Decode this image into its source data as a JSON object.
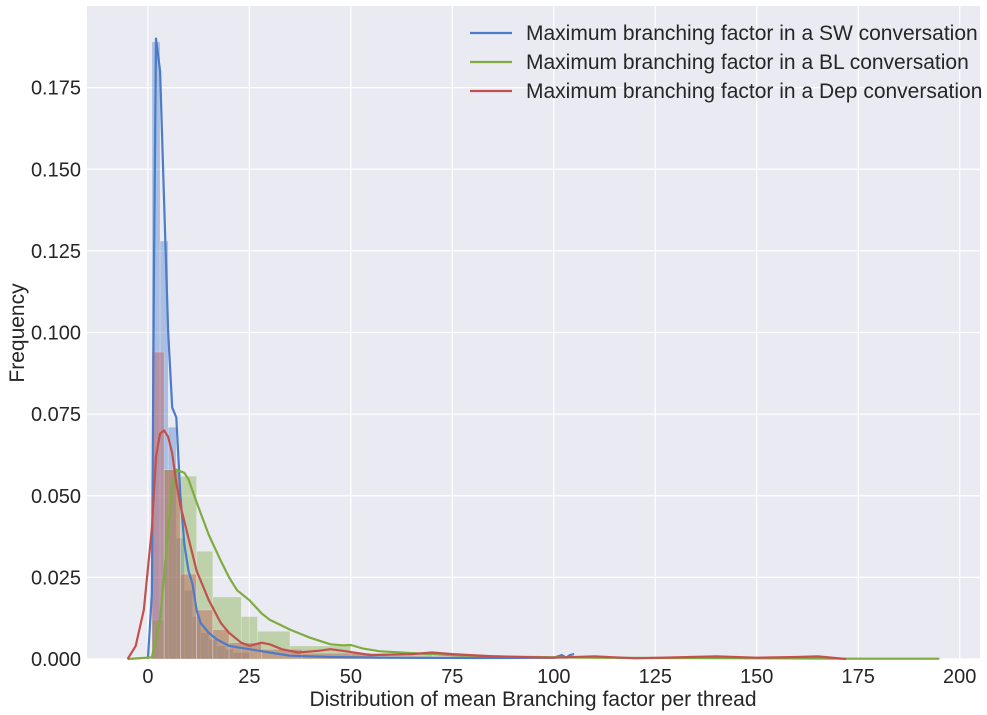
{
  "chart_data": {
    "type": "histogram",
    "title": "",
    "xlabel": "Distribution of mean Branching factor per thread",
    "ylabel": "Frequency",
    "xlim": [
      -15,
      205
    ],
    "ylim": [
      0,
      0.2
    ],
    "xticks": [
      0,
      25,
      50,
      75,
      100,
      125,
      150,
      175,
      200
    ],
    "yticks": [
      0.0,
      0.025,
      0.05,
      0.075,
      0.1,
      0.125,
      0.15,
      0.175
    ],
    "ytick_labels": [
      "0.000",
      "0.025",
      "0.050",
      "0.075",
      "0.100",
      "0.125",
      "0.150",
      "0.175"
    ],
    "grid": true,
    "legend_position": "top-right",
    "series": [
      {
        "name": "Maximum branching factor in a SW conversation",
        "color": "#4a7cc9",
        "hist": [
          {
            "x0": 1,
            "x1": 3,
            "y": 0.189
          },
          {
            "x0": 3,
            "x1": 5,
            "y": 0.128
          },
          {
            "x0": 5,
            "x1": 7,
            "y": 0.071
          },
          {
            "x0": 7,
            "x1": 9,
            "y": 0.037
          },
          {
            "x0": 9,
            "x1": 11,
            "y": 0.021
          },
          {
            "x0": 11,
            "x1": 13,
            "y": 0.013
          },
          {
            "x0": 13,
            "x1": 15,
            "y": 0.008
          },
          {
            "x0": 15,
            "x1": 17,
            "y": 0.006
          },
          {
            "x0": 17,
            "x1": 19,
            "y": 0.004
          },
          {
            "x0": 19,
            "x1": 21,
            "y": 0.003
          },
          {
            "x0": 21,
            "x1": 25,
            "y": 0.002
          }
        ],
        "kde": [
          [
            0,
            0
          ],
          [
            1,
            0.02
          ],
          [
            1.5,
            0.12
          ],
          [
            2,
            0.19
          ],
          [
            3,
            0.18
          ],
          [
            4,
            0.14
          ],
          [
            5,
            0.1
          ],
          [
            6,
            0.077
          ],
          [
            7,
            0.074
          ],
          [
            8,
            0.05
          ],
          [
            9,
            0.035
          ],
          [
            10,
            0.027
          ],
          [
            11,
            0.023
          ],
          [
            12,
            0.015
          ],
          [
            13,
            0.011
          ],
          [
            15,
            0.008
          ],
          [
            17,
            0.006
          ],
          [
            20,
            0.004
          ],
          [
            25,
            0.003
          ],
          [
            30,
            0.002
          ],
          [
            35,
            0.001
          ],
          [
            45,
            0.0006
          ],
          [
            60,
            0.0004
          ],
          [
            80,
            0.0003
          ],
          [
            100,
            0.0004
          ],
          [
            102,
            0.0012
          ],
          [
            103,
            0.0004
          ],
          [
            104,
            0.0012
          ],
          [
            105,
            0.0015
          ]
        ]
      },
      {
        "name": "Maximum branching factor in a BL conversation",
        "color": "#7fac3f",
        "hist": [
          {
            "x0": 1,
            "x1": 4,
            "y": 0.012
          },
          {
            "x0": 4,
            "x1": 8,
            "y": 0.058
          },
          {
            "x0": 8,
            "x1": 12,
            "y": 0.056
          },
          {
            "x0": 12,
            "x1": 16,
            "y": 0.033
          },
          {
            "x0": 16,
            "x1": 23,
            "y": 0.019
          },
          {
            "x0": 23,
            "x1": 27,
            "y": 0.013
          },
          {
            "x0": 27,
            "x1": 35,
            "y": 0.0085
          },
          {
            "x0": 35,
            "x1": 50,
            "y": 0.004
          },
          {
            "x0": 50,
            "x1": 70,
            "y": 0.0018
          },
          {
            "x0": 70,
            "x1": 100,
            "y": 0.0008
          },
          {
            "x0": 100,
            "x1": 195,
            "y": 0.0002
          }
        ],
        "kde": [
          [
            -5,
            0
          ],
          [
            1,
            0.0005
          ],
          [
            3,
            0.012
          ],
          [
            5,
            0.04
          ],
          [
            6,
            0.052
          ],
          [
            7,
            0.058
          ],
          [
            9,
            0.057
          ],
          [
            10,
            0.055
          ],
          [
            12,
            0.048
          ],
          [
            15,
            0.038
          ],
          [
            18,
            0.03
          ],
          [
            20,
            0.025
          ],
          [
            22,
            0.021
          ],
          [
            25,
            0.018
          ],
          [
            28,
            0.014
          ],
          [
            30,
            0.012
          ],
          [
            35,
            0.009
          ],
          [
            40,
            0.0065
          ],
          [
            45,
            0.0045
          ],
          [
            48,
            0.0042
          ],
          [
            50,
            0.0043
          ],
          [
            53,
            0.0032
          ],
          [
            57,
            0.0024
          ],
          [
            65,
            0.0018
          ],
          [
            75,
            0.0012
          ],
          [
            90,
            0.0007
          ],
          [
            110,
            0.0004
          ],
          [
            130,
            0.0003
          ],
          [
            150,
            0.0002
          ],
          [
            170,
            0.0001
          ],
          [
            195,
            0.0001
          ]
        ]
      },
      {
        "name": "Maximum branching factor in a Dep conversation",
        "color": "#c4504e",
        "hist": [
          {
            "x0": 1,
            "x1": 4,
            "y": 0.094
          },
          {
            "x0": 4,
            "x1": 8,
            "y": 0.058
          },
          {
            "x0": 8,
            "x1": 12,
            "y": 0.026
          },
          {
            "x0": 12,
            "x1": 16,
            "y": 0.015
          },
          {
            "x0": 16,
            "x1": 20,
            "y": 0.009
          },
          {
            "x0": 20,
            "x1": 28,
            "y": 0.005
          },
          {
            "x0": 28,
            "x1": 38,
            "y": 0.003
          },
          {
            "x0": 38,
            "x1": 55,
            "y": 0.0018
          },
          {
            "x0": 55,
            "x1": 100,
            "y": 0.0008
          }
        ],
        "kde": [
          [
            -5,
            0
          ],
          [
            -3,
            0.004
          ],
          [
            -1,
            0.015
          ],
          [
            1,
            0.04
          ],
          [
            2,
            0.062
          ],
          [
            3,
            0.069
          ],
          [
            4,
            0.07
          ],
          [
            5,
            0.068
          ],
          [
            6,
            0.063
          ],
          [
            7,
            0.054
          ],
          [
            8,
            0.047
          ],
          [
            10,
            0.037
          ],
          [
            12,
            0.027
          ],
          [
            15,
            0.018
          ],
          [
            18,
            0.011
          ],
          [
            20,
            0.008
          ],
          [
            23,
            0.005
          ],
          [
            25,
            0.004
          ],
          [
            28,
            0.005
          ],
          [
            30,
            0.0045
          ],
          [
            33,
            0.003
          ],
          [
            37,
            0.002
          ],
          [
            42,
            0.0025
          ],
          [
            45,
            0.003
          ],
          [
            48,
            0.0025
          ],
          [
            55,
            0.0012
          ],
          [
            65,
            0.0015
          ],
          [
            70,
            0.002
          ],
          [
            75,
            0.0015
          ],
          [
            85,
            0.0008
          ],
          [
            100,
            0.0004
          ],
          [
            110,
            0.0008
          ],
          [
            120,
            0.0002
          ],
          [
            130,
            0.0005
          ],
          [
            140,
            0.0008
          ],
          [
            150,
            0.0004
          ],
          [
            160,
            0.0006
          ],
          [
            165,
            0.0008
          ],
          [
            172,
            0
          ]
        ]
      }
    ]
  }
}
